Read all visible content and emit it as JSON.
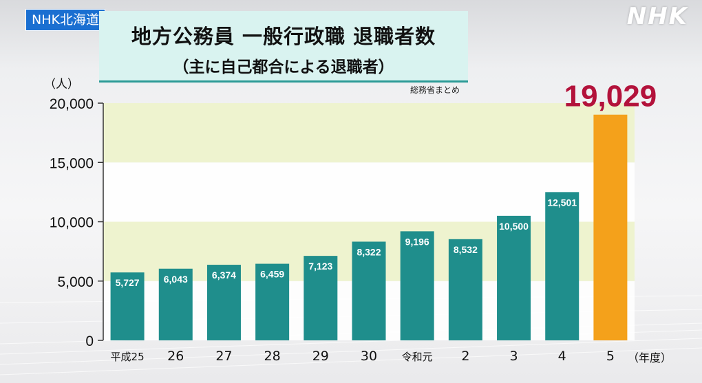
{
  "broadcast": {
    "tag": "NHK北海道",
    "logo": "NHK"
  },
  "title": {
    "main": "地方公務員 一般行政職 退職者数",
    "sub": "（主に自己都合による退職者）"
  },
  "source": "総務省まとめ",
  "colors": {
    "bar": "#1f8e8c",
    "highlight_bar": "#f4a11b",
    "highlight_text": "#b3123b",
    "band": "#eef3cf"
  },
  "chart_data": {
    "type": "bar",
    "ylabel": "（人）",
    "xlabel": "（年度）",
    "ylim": [
      0,
      20000
    ],
    "yticks": [
      {
        "value": 0,
        "label": "0"
      },
      {
        "value": 5000,
        "label": "5,000"
      },
      {
        "value": 10000,
        "label": "10,000"
      },
      {
        "value": 15000,
        "label": "15,000"
      },
      {
        "value": 20000,
        "label": "20,000"
      }
    ],
    "categories": [
      "平成25",
      "26",
      "27",
      "28",
      "29",
      "30",
      "令和元",
      "2",
      "3",
      "4",
      "5"
    ],
    "values": [
      5727,
      6043,
      6374,
      6459,
      7123,
      8322,
      9196,
      8532,
      10500,
      12501,
      19029
    ],
    "value_labels": [
      "5,727",
      "6,043",
      "6,374",
      "6,459",
      "7,123",
      "8,322",
      "9,196",
      "8,532",
      "10,500",
      "12,501",
      "19,029"
    ],
    "highlight_index": 10,
    "grid": false
  }
}
